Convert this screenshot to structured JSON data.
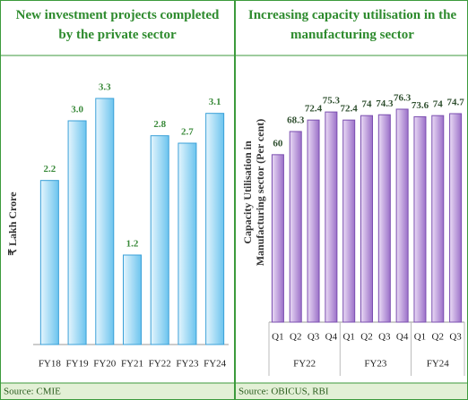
{
  "chart_data": [
    {
      "type": "bar",
      "title": "New investment projects completed by the private sector",
      "y_label": "₹ Lakh Crore",
      "categories": [
        "FY18",
        "FY19",
        "FY20",
        "FY21",
        "FY22",
        "FY23",
        "FY24"
      ],
      "values": [
        2.2,
        3.0,
        3.3,
        1.2,
        2.8,
        2.7,
        3.1
      ],
      "value_labels": [
        "2.2",
        "3.0",
        "3.3",
        "1.2",
        "2.8",
        "2.7",
        "3.1"
      ],
      "color": "#6cc4ee",
      "source": "Source: CMIE"
    },
    {
      "type": "grouped_bar",
      "title": "Increasing capacity utilisation in the manufacturing sector",
      "y_label": "Capacity Utilisation in Manufacturing sector (Per cent)",
      "groups": [
        {
          "name": "FY22",
          "categories": [
            "Q1",
            "Q2",
            "Q3",
            "Q4"
          ],
          "values": [
            60,
            68.3,
            72.4,
            75.3
          ]
        },
        {
          "name": "FY23",
          "categories": [
            "Q1",
            "Q2",
            "Q3",
            "Q4"
          ],
          "values": [
            72.4,
            74,
            74.3,
            76.3
          ]
        },
        {
          "name": "FY24",
          "categories": [
            "Q1",
            "Q2",
            "Q3"
          ],
          "values": [
            73.6,
            74,
            74.7
          ]
        }
      ],
      "color": "#9b70c8",
      "source": "Source: OBICUS, RBI"
    }
  ]
}
